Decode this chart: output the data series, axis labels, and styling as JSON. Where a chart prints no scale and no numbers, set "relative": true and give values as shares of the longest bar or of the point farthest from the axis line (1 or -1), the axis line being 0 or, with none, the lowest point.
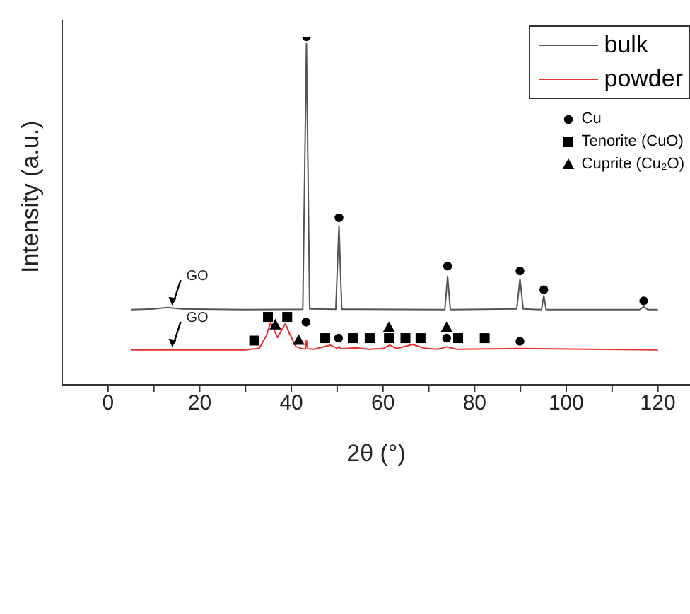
{
  "chart_data": {
    "type": "line",
    "xlabel": "2θ (°)",
    "ylabel": "Intensity (a.u.)",
    "relative": true,
    "xlim": [
      -10,
      127
    ],
    "xticks": [
      0,
      {
        "value": 10,
        "label": null
      },
      20,
      {
        "value": 30,
        "label": null
      },
      40,
      {
        "value": 50,
        "label": null
      },
      60,
      {
        "value": 70,
        "label": null
      },
      80,
      {
        "value": 90,
        "label": null
      },
      100,
      {
        "value": 110,
        "label": null
      },
      120
    ],
    "legend": "top right",
    "line_style": "solid",
    "series": [
      {
        "name": "bulk",
        "color": "#555555",
        "x": [
          5,
          10,
          13,
          16,
          30,
          42.5,
          43.3,
          44,
          49.7,
          50.4,
          51,
          73.5,
          74.1,
          74.7,
          89.2,
          89.9,
          90.6,
          94.6,
          94.95,
          95.1,
          95.25,
          95.6,
          116,
          116.9,
          117.8,
          120
        ],
        "values": [
          0.216,
          0.218,
          0.222,
          0.218,
          0.216,
          0.217,
          0.98,
          0.218,
          0.217,
          0.457,
          0.217,
          0.216,
          0.312,
          0.216,
          0.218,
          0.304,
          0.218,
          0.216,
          0.245,
          0.256,
          0.245,
          0.216,
          0.216,
          0.224,
          0.216,
          0.216
        ]
      },
      {
        "name": "powder",
        "color": "#e8302e",
        "x": [
          5,
          30,
          33,
          34.5,
          35.5,
          36.5,
          37,
          38,
          38.7,
          39.5,
          41,
          42.5,
          43.1,
          43.3,
          43.6,
          45,
          48.5,
          50,
          50.4,
          50.8,
          54,
          57,
          60,
          61.5,
          63,
          66.5,
          69,
          72,
          74,
          76,
          90,
          120
        ],
        "values": [
          0.1,
          0.1,
          0.105,
          0.14,
          0.179,
          0.15,
          0.136,
          0.16,
          0.176,
          0.15,
          0.11,
          0.103,
          0.103,
          0.128,
          0.103,
          0.102,
          0.114,
          0.105,
          0.11,
          0.103,
          0.106,
          0.102,
          0.104,
          0.114,
          0.104,
          0.116,
          0.105,
          0.102,
          0.109,
          0.102,
          0.104,
          0.1
        ]
      },
      {
        "name": "Cu",
        "color": "#000000",
        "type": "scatter",
        "marker": "circle",
        "x": [
          43.3,
          50.4,
          74.1,
          89.9,
          95.1,
          116.9,
          43.2,
          50.3,
          73.9,
          89.9
        ],
        "values": [
          1.0,
          0.48,
          0.341,
          0.327,
          0.273,
          0.241,
          0.18,
          0.134,
          0.134,
          0.125
        ]
      },
      {
        "name": "Tenorite (CuO)",
        "color": "#000000",
        "type": "scatter",
        "marker": "square",
        "x": [
          34.9,
          39.1,
          31.9,
          47.4,
          53.4,
          57.1,
          61.3,
          64.9,
          68.2,
          76.4,
          82.2
        ],
        "values": [
          0.195,
          0.195,
          0.127,
          0.134,
          0.134,
          0.134,
          0.134,
          0.134,
          0.134,
          0.134,
          0.134
        ]
      },
      {
        "name": "Cuprite (Cu₂O)",
        "color": "#000000",
        "type": "scatter",
        "marker": "triangle",
        "x": [
          36.5,
          41.6,
          61.3,
          73.9
        ],
        "values": [
          0.171,
          0.127,
          0.164,
          0.164
        ]
      }
    ],
    "annotations": [
      {
        "text": "GO",
        "x": 14,
        "y": 0.22
      },
      {
        "text": "GO",
        "x": 14,
        "y": 0.1
      }
    ]
  }
}
